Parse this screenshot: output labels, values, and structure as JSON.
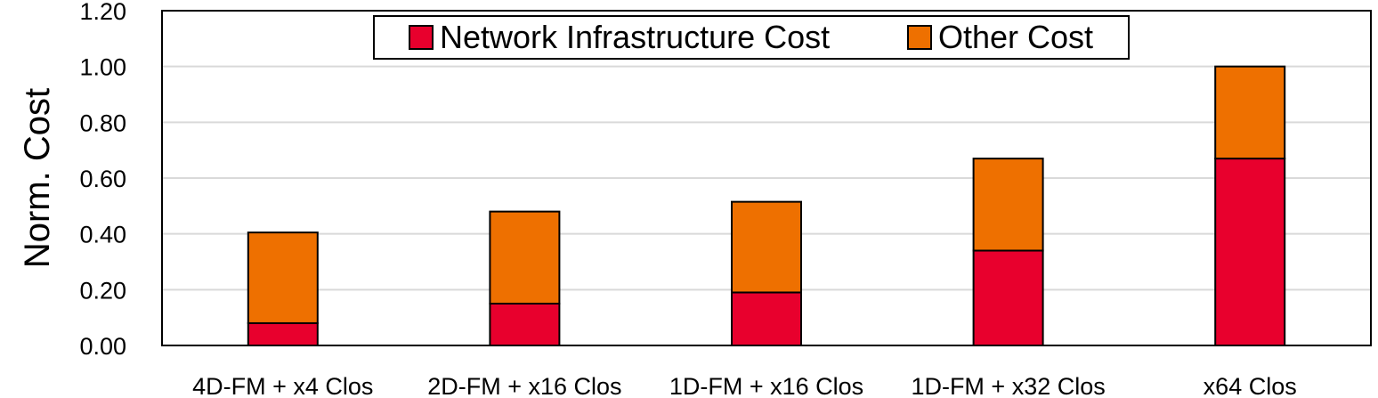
{
  "chart_data": {
    "type": "bar",
    "stacked": true,
    "categories": [
      "4D-FM + x4 Clos",
      "2D-FM + x16 Clos",
      "1D-FM + x16 Clos",
      "1D-FM + x32 Clos",
      "x64 Clos"
    ],
    "series": [
      {
        "name": "Network Infrastructure Cost",
        "values": [
          0.08,
          0.15,
          0.19,
          0.34,
          0.67
        ],
        "color": "#e8002d"
      },
      {
        "name": "Other Cost",
        "values": [
          0.325,
          0.33,
          0.325,
          0.33,
          0.33
        ],
        "color": "#ee7000"
      }
    ],
    "ylabel": "Norm. Cost",
    "xlabel": "",
    "ylim": [
      0,
      1.2
    ],
    "yticks": [
      "0.00",
      "0.20",
      "0.40",
      "0.60",
      "0.80",
      "1.00",
      "1.20"
    ],
    "grid": true,
    "legend_position": "top-center"
  }
}
